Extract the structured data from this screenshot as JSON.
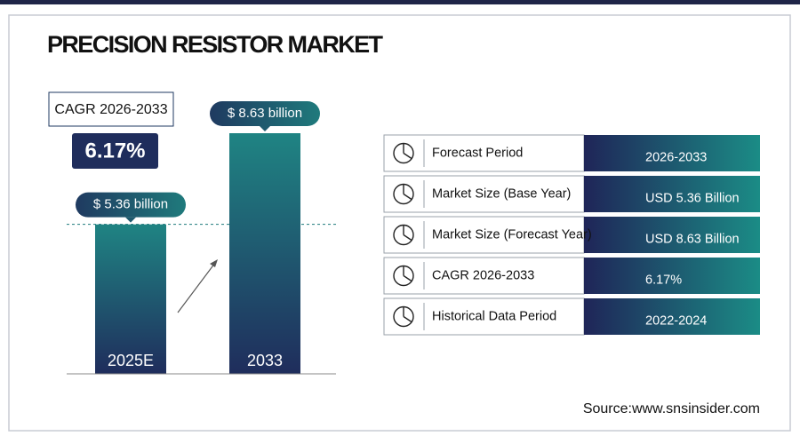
{
  "chart_data": {
    "type": "bar",
    "title": "PRECISION RESISTOR MARKET",
    "categories": [
      "2025E",
      "2033"
    ],
    "values": [
      5.36,
      8.63
    ],
    "value_labels": [
      "$ 5.36 billion",
      "$ 8.63 billion"
    ]
  },
  "cagr": {
    "label": "CAGR 2026-2033",
    "value": "6.17%"
  },
  "table": {
    "rows": [
      [
        "Forecast Period",
        "2026-2033"
      ],
      [
        "Market Size (Base Year)",
        "USD 5.36 Billion"
      ],
      [
        "Market Size (Forecast Year)",
        "USD 8.63 Billion"
      ],
      [
        "CAGR 2026-2033",
        "6.17%"
      ],
      [
        "Historical Data Period",
        "2022-2024"
      ]
    ]
  },
  "source": "Source:www.snsinsider.com"
}
